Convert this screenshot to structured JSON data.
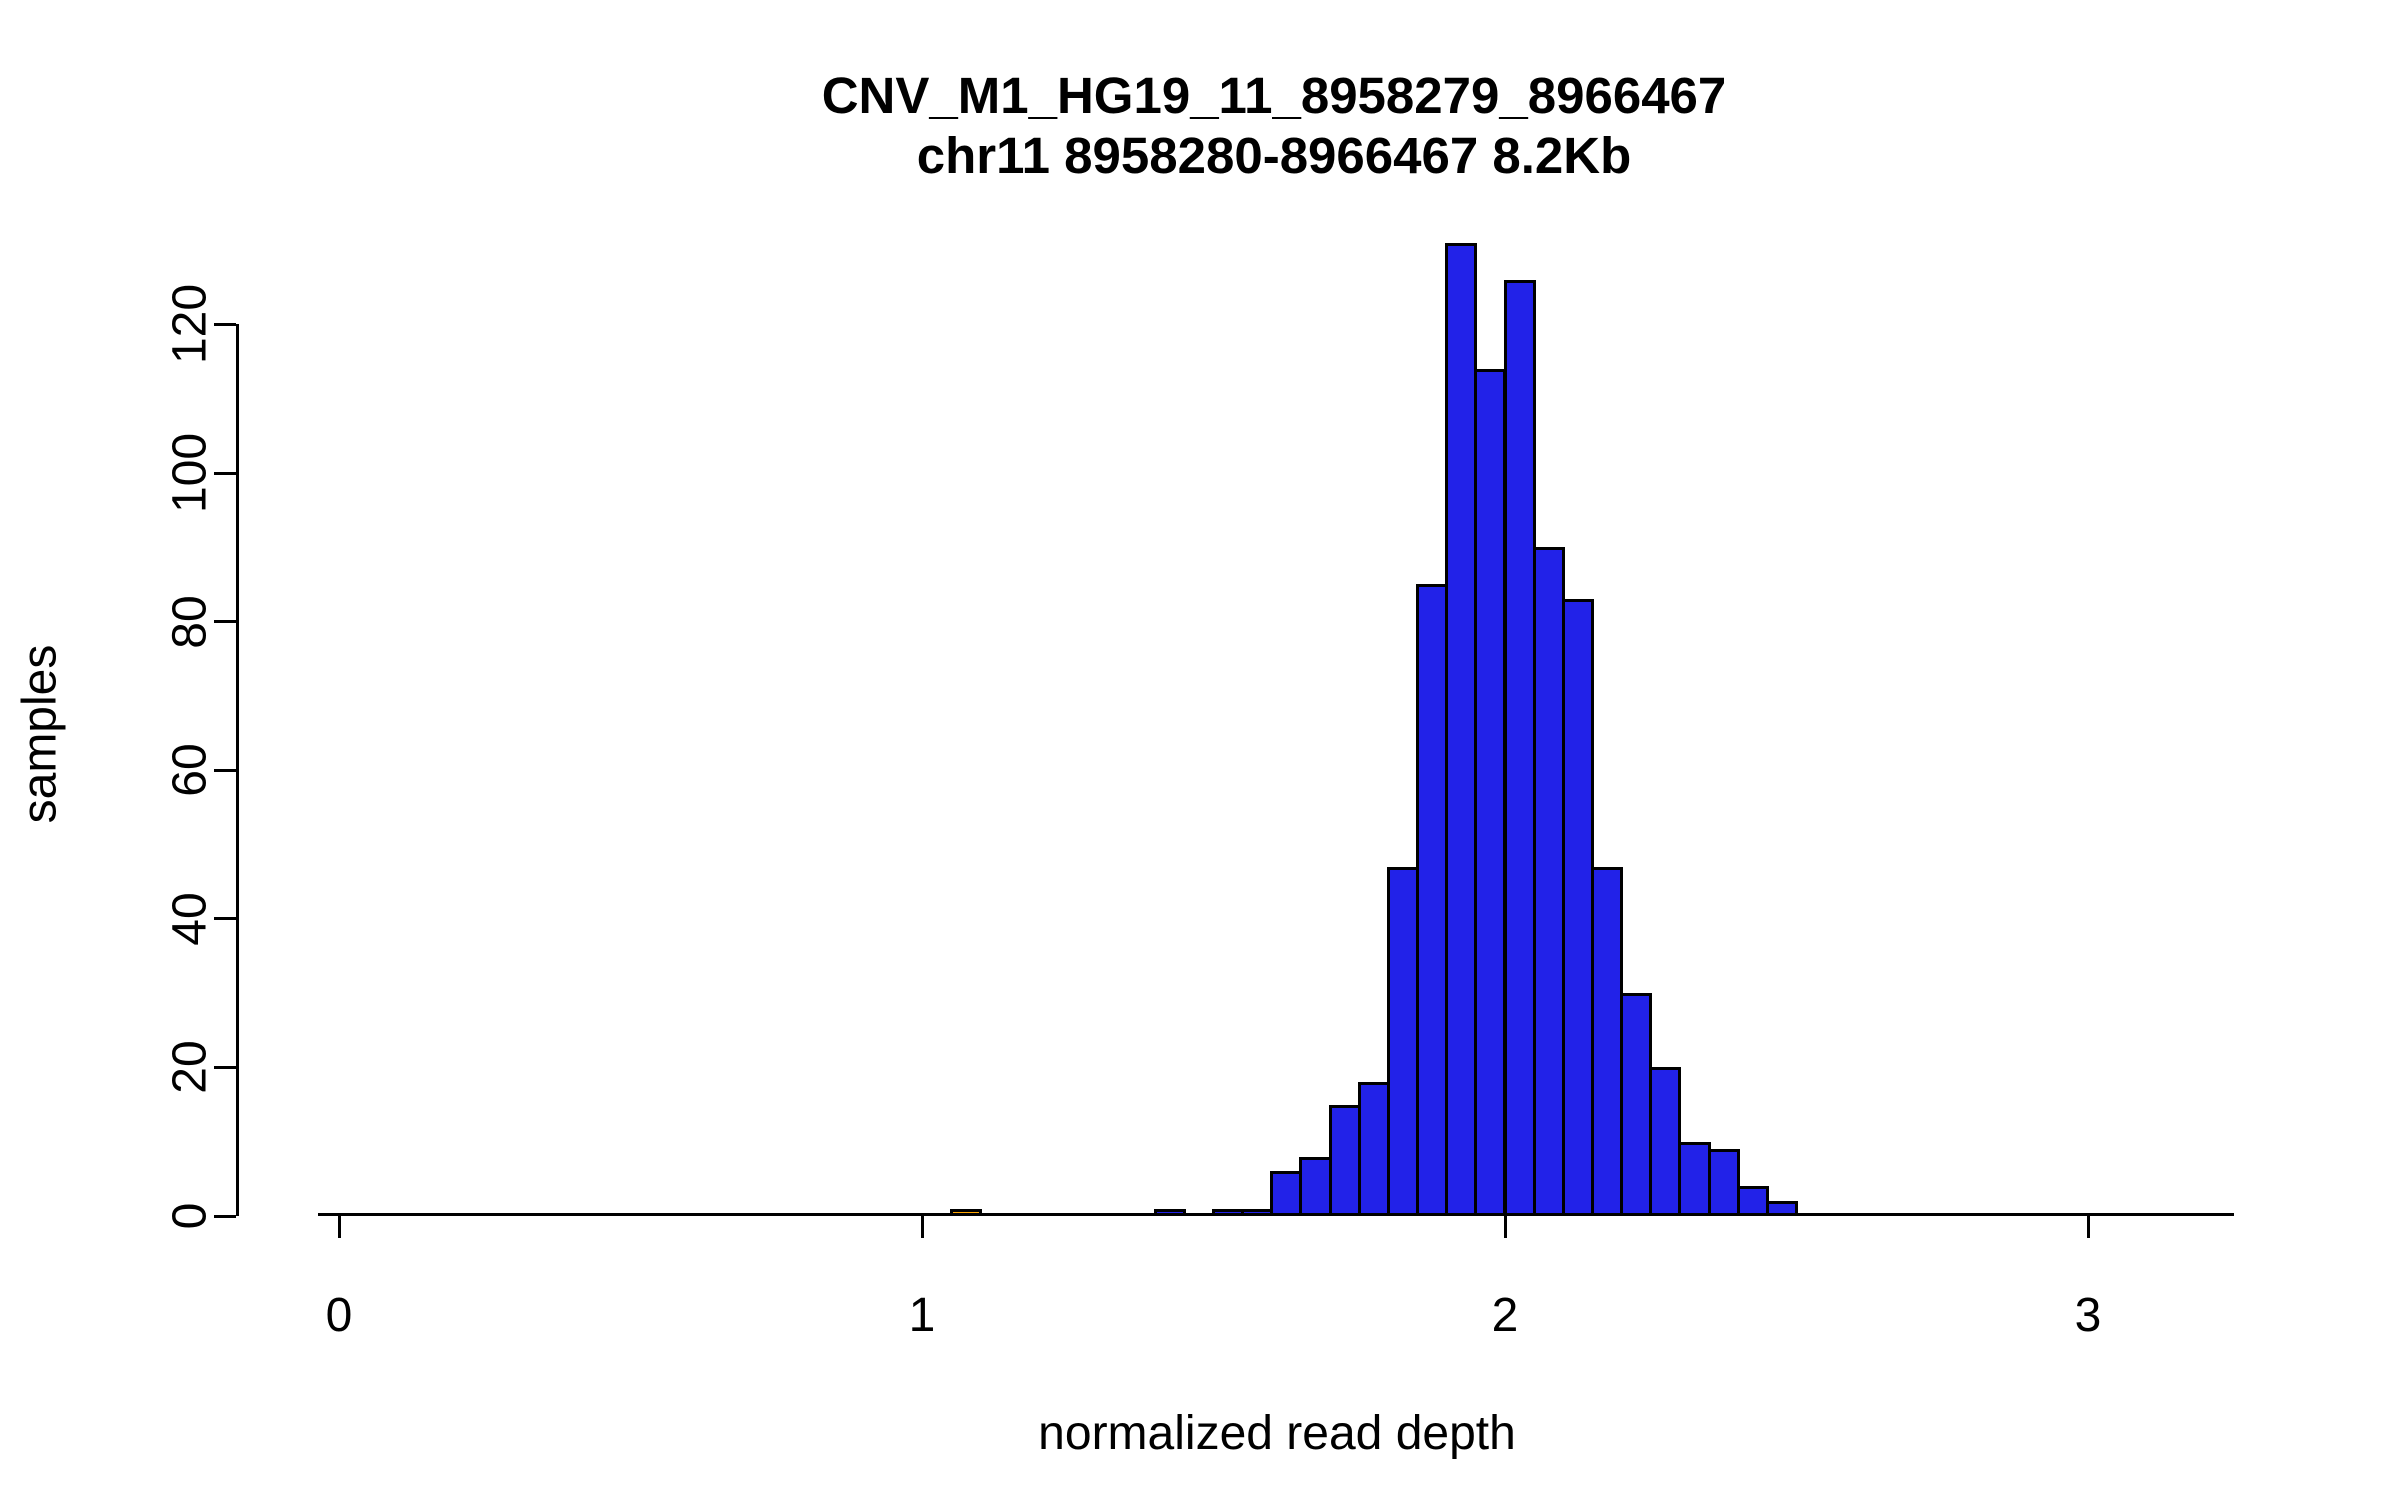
{
  "chart_data": {
    "type": "bar",
    "subtype": "histogram",
    "title": "CNV_M1_HG19_11_8958279_8966467",
    "subtitle": "chr11 8958280-8966467 8.2Kb",
    "xlabel": "normalized read depth",
    "ylabel": "samples",
    "x_ticks": [
      0,
      1,
      2,
      3
    ],
    "y_ticks": [
      0,
      20,
      40,
      60,
      80,
      100,
      120
    ],
    "xlim": [
      -0.04,
      3.25
    ],
    "ylim": [
      0,
      131
    ],
    "bin_width": 0.05,
    "grid": false,
    "legend": "none",
    "colors": {
      "default_bar": "#2222e8",
      "highlight_bar": "#ffa500",
      "axis": "#000000",
      "background": "#ffffff"
    },
    "bins": [
      {
        "start": 1.05,
        "count": 1,
        "color": "#ffa500"
      },
      {
        "start": 1.4,
        "count": 1
      },
      {
        "start": 1.5,
        "count": 1
      },
      {
        "start": 1.55,
        "count": 1
      },
      {
        "start": 1.6,
        "count": 6
      },
      {
        "start": 1.65,
        "count": 8
      },
      {
        "start": 1.7,
        "count": 15
      },
      {
        "start": 1.75,
        "count": 18
      },
      {
        "start": 1.8,
        "count": 47
      },
      {
        "start": 1.85,
        "count": 85
      },
      {
        "start": 1.9,
        "count": 131
      },
      {
        "start": 1.95,
        "count": 114
      },
      {
        "start": 2.0,
        "count": 126
      },
      {
        "start": 2.05,
        "count": 90
      },
      {
        "start": 2.1,
        "count": 83
      },
      {
        "start": 2.15,
        "count": 47
      },
      {
        "start": 2.2,
        "count": 30
      },
      {
        "start": 2.25,
        "count": 20
      },
      {
        "start": 2.3,
        "count": 10
      },
      {
        "start": 2.35,
        "count": 9
      },
      {
        "start": 2.4,
        "count": 4
      },
      {
        "start": 2.45,
        "count": 2
      }
    ]
  }
}
